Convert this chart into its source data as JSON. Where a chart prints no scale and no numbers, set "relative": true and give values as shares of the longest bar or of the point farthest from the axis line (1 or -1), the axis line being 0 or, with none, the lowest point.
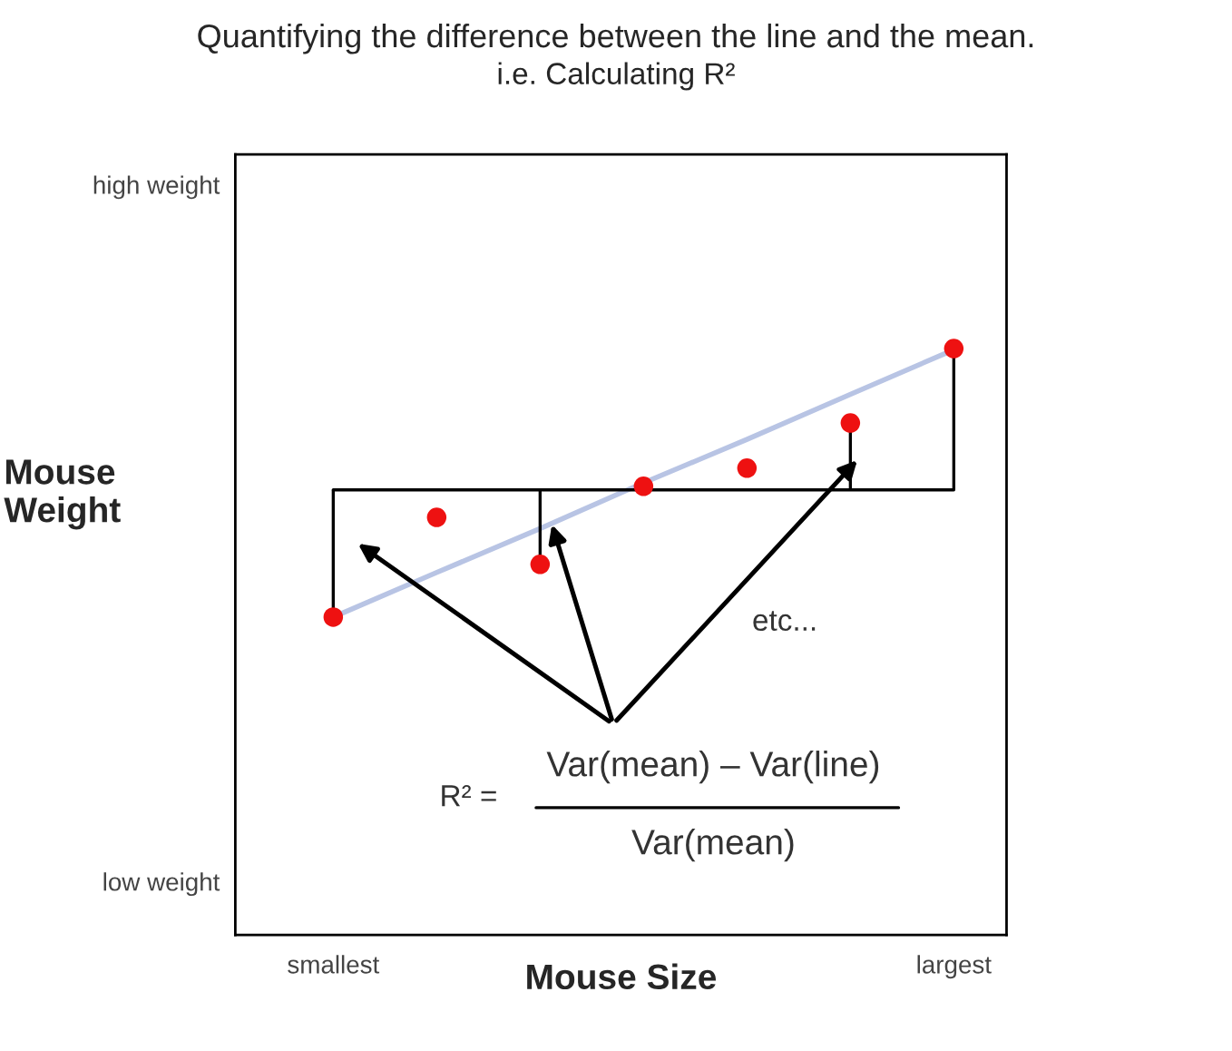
{
  "chart_data": {
    "type": "scatter",
    "title": "Quantifying the difference between the line and the mean.",
    "subtitle": "i.e. Calculating R²",
    "xlabel": "Mouse Size",
    "ylabel": "Mouse\nWeight",
    "relative": true,
    "categories": [
      "smallest",
      null,
      null,
      null,
      null,
      null,
      "largest"
    ],
    "series": [
      {
        "type": "line",
        "marker": "none",
        "color": "#b8c4e4",
        "values": [
          0.542,
          0.618,
          0.693,
          0.771,
          0.845,
          0.922,
          0.998
        ]
      },
      {
        "type": "line",
        "marker": "none",
        "color": "#000000",
        "values": [
          0.759,
          0.759,
          0.759,
          0.759,
          0.759,
          0.759,
          0.759
        ]
      },
      {
        "color": "#ee1111",
        "values": [
          0.542,
          0.712,
          0.632,
          0.765,
          0.796,
          0.873,
          1
        ]
      }
    ],
    "annotations": [
      "high weight",
      "low weight",
      "etc...",
      "R² =",
      "Var(mean) – Var(line)",
      "Var(mean)"
    ],
    "marker": "circle",
    "grid": false,
    "legend": false
  }
}
